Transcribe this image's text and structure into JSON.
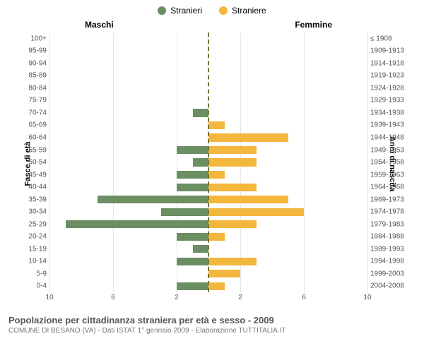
{
  "legend": {
    "male": {
      "label": "Stranieri",
      "color": "#6b8e63"
    },
    "female": {
      "label": "Straniere",
      "color": "#f3b73e"
    }
  },
  "headers": {
    "male": "Maschi",
    "female": "Femmine"
  },
  "axis_titles": {
    "left": "Fasce di età",
    "right": "Anni di nascita"
  },
  "footer": {
    "title": "Popolazione per cittadinanza straniera per età e sesso - 2009",
    "subtitle": "COMUNE DI BESANO (VA) - Dati ISTAT 1° gennaio 2009 - Elaborazione TUTTITALIA.IT"
  },
  "style": {
    "background_color": "#ffffff",
    "grid_color": "#e6e6e6",
    "center_line_color": "#737333",
    "text_color": "#555555",
    "axis_font_size": 10,
    "header_font_size": 12
  },
  "chart": {
    "type": "population-pyramid",
    "x_max": 10,
    "x_ticks": [
      10,
      6,
      2,
      2,
      6,
      10
    ],
    "rows": [
      {
        "age": "100+",
        "birth": "≤ 1908",
        "m": 0,
        "f": 0
      },
      {
        "age": "95-99",
        "birth": "1909-1913",
        "m": 0,
        "f": 0
      },
      {
        "age": "90-94",
        "birth": "1914-1918",
        "m": 0,
        "f": 0
      },
      {
        "age": "85-89",
        "birth": "1919-1923",
        "m": 0,
        "f": 0
      },
      {
        "age": "80-84",
        "birth": "1924-1928",
        "m": 0,
        "f": 0
      },
      {
        "age": "75-79",
        "birth": "1929-1933",
        "m": 0,
        "f": 0
      },
      {
        "age": "70-74",
        "birth": "1934-1938",
        "m": 1,
        "f": 0
      },
      {
        "age": "65-69",
        "birth": "1939-1943",
        "m": 0,
        "f": 1
      },
      {
        "age": "60-64",
        "birth": "1944-1948",
        "m": 0,
        "f": 5
      },
      {
        "age": "55-59",
        "birth": "1949-1953",
        "m": 2,
        "f": 3
      },
      {
        "age": "50-54",
        "birth": "1954-1958",
        "m": 1,
        "f": 3
      },
      {
        "age": "45-49",
        "birth": "1959-1963",
        "m": 2,
        "f": 1
      },
      {
        "age": "40-44",
        "birth": "1964-1968",
        "m": 2,
        "f": 3
      },
      {
        "age": "35-39",
        "birth": "1969-1973",
        "m": 7,
        "f": 5
      },
      {
        "age": "30-34",
        "birth": "1974-1978",
        "m": 3,
        "f": 6
      },
      {
        "age": "25-29",
        "birth": "1979-1983",
        "m": 9,
        "f": 3
      },
      {
        "age": "20-24",
        "birth": "1984-1988",
        "m": 2,
        "f": 1
      },
      {
        "age": "15-19",
        "birth": "1989-1993",
        "m": 1,
        "f": 0
      },
      {
        "age": "10-14",
        "birth": "1994-1998",
        "m": 2,
        "f": 3
      },
      {
        "age": "5-9",
        "birth": "1999-2003",
        "m": 0,
        "f": 2
      },
      {
        "age": "0-4",
        "birth": "2004-2008",
        "m": 2,
        "f": 1
      }
    ]
  }
}
